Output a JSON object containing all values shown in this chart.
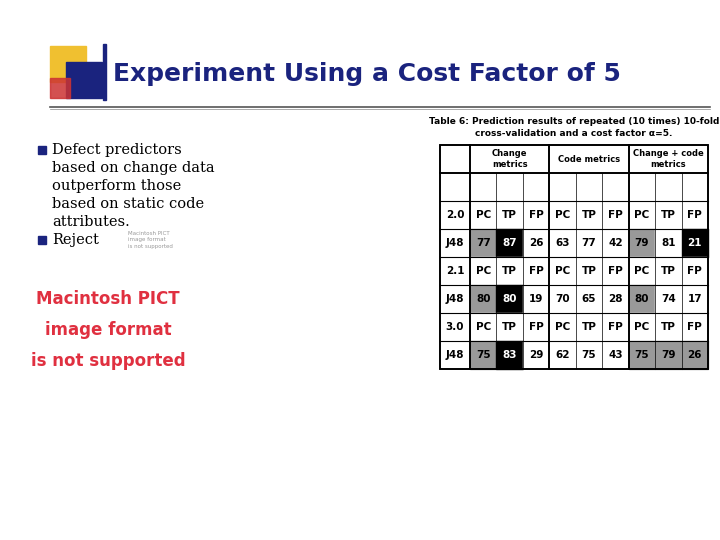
{
  "title": "Experiment Using a Cost Factor of 5",
  "title_color": "#1a237e",
  "title_fontsize": 18,
  "bg_color": "#ffffff",
  "bullet1_lines": [
    "Defect predictors",
    "based on change data",
    "outperform those",
    "based on static code",
    "attributes."
  ],
  "bullet2": "Reject",
  "bullet2_note": "Macintosh PICT\nimage format\nis not supported",
  "table_title_line1": "Table 6: Prediction results of repeated (10 times) 10-fold",
  "table_title_line2": "cross-validation and a cost factor α=5.",
  "col_groups": [
    "Change\nmetrics",
    "Code metrics",
    "Change + code\nmetrics"
  ],
  "sub_cols": [
    "PC",
    "TP",
    "FP"
  ],
  "rows": [
    {
      "label": "2.0",
      "header": true,
      "data": [
        [
          "PC",
          "TP",
          "FP"
        ],
        [
          "PC",
          "TP",
          "FP"
        ],
        [
          "PC",
          "TP",
          "FP"
        ]
      ]
    },
    {
      "label": "J48",
      "header": false,
      "data": [
        [
          "77",
          "87",
          "26"
        ],
        [
          "63",
          "77",
          "42"
        ],
        [
          "79",
          "81",
          "21"
        ]
      ]
    },
    {
      "label": "2.1",
      "header": true,
      "data": [
        [
          "PC",
          "TP",
          "FP"
        ],
        [
          "PC",
          "TP",
          "FP"
        ],
        [
          "PC",
          "TP",
          "FP"
        ]
      ]
    },
    {
      "label": "J48",
      "header": false,
      "data": [
        [
          "80",
          "80",
          "19"
        ],
        [
          "70",
          "65",
          "28"
        ],
        [
          "80",
          "74",
          "17"
        ]
      ]
    },
    {
      "label": "3.0",
      "header": true,
      "data": [
        [
          "PC",
          "TP",
          "FP"
        ],
        [
          "PC",
          "TP",
          "FP"
        ],
        [
          "PC",
          "TP",
          "FP"
        ]
      ]
    },
    {
      "label": "J48",
      "header": false,
      "data": [
        [
          "75",
          "83",
          "29"
        ],
        [
          "62",
          "75",
          "43"
        ],
        [
          "75",
          "79",
          "26"
        ]
      ]
    }
  ],
  "cell_bg": {
    "1_0": "#999999",
    "1_1": "#000000",
    "1_2": "#ffffff",
    "1_3": "#ffffff",
    "1_4": "#ffffff",
    "1_5": "#ffffff",
    "1_6": "#999999",
    "1_7": "#ffffff",
    "1_8": "#000000",
    "3_0": "#999999",
    "3_1": "#000000",
    "3_2": "#ffffff",
    "3_3": "#ffffff",
    "3_4": "#ffffff",
    "3_5": "#ffffff",
    "3_6": "#999999",
    "3_7": "#ffffff",
    "3_8": "#ffffff",
    "5_0": "#999999",
    "5_1": "#000000",
    "5_2": "#ffffff",
    "5_3": "#ffffff",
    "5_4": "#ffffff",
    "5_5": "#ffffff",
    "5_6": "#999999",
    "5_7": "#999999",
    "5_8": "#999999"
  },
  "cell_fg": {
    "1_1": "#ffffff",
    "1_8": "#ffffff",
    "3_1": "#ffffff",
    "5_1": "#ffffff"
  },
  "deco_yellow": "#f0c030",
  "deco_blue": "#1a237e",
  "deco_red": "#cc3333",
  "divider_color": "#555555",
  "bullet_color": "#1a237e",
  "pict_color": "#e03040"
}
